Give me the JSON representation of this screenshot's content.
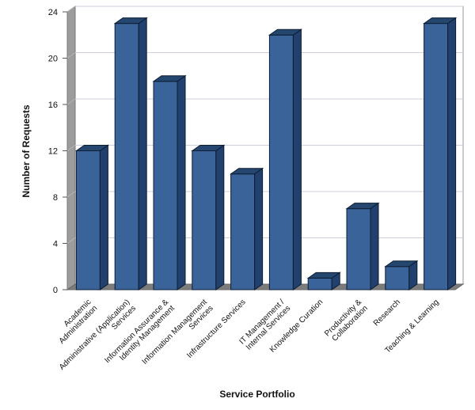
{
  "chart_data": {
    "type": "bar",
    "title": "",
    "xlabel": "Service Portfolio",
    "ylabel": "Number of Requests",
    "ylim": [
      0,
      24
    ],
    "yticks": [
      0,
      4,
      8,
      12,
      16,
      20,
      24
    ],
    "grid": true,
    "categories": [
      [
        "Academic",
        "Administration"
      ],
      [
        "Administrative (Application)",
        "Services"
      ],
      [
        "Information Assurance &",
        "Identity Management"
      ],
      [
        "Information Management",
        "Services"
      ],
      [
        "Infrastructure Services"
      ],
      [
        "IT Management /",
        "Internal Services"
      ],
      [
        "Knowledge Curation"
      ],
      [
        "Productivity &",
        "Collaboration"
      ],
      [
        "Research"
      ],
      [
        "Teaching & Learning"
      ]
    ],
    "values": [
      12,
      23,
      18,
      12,
      10,
      22,
      1,
      7,
      2,
      23
    ],
    "colors": {
      "bar_front": "#3A6399",
      "bar_side": "#21406D",
      "bar_top": "#24466F",
      "back_wall": "#FFFFFF",
      "side_wall": "#9C9C9C",
      "floor": "#7C7C7C",
      "grid": "#CFCFDF"
    }
  }
}
